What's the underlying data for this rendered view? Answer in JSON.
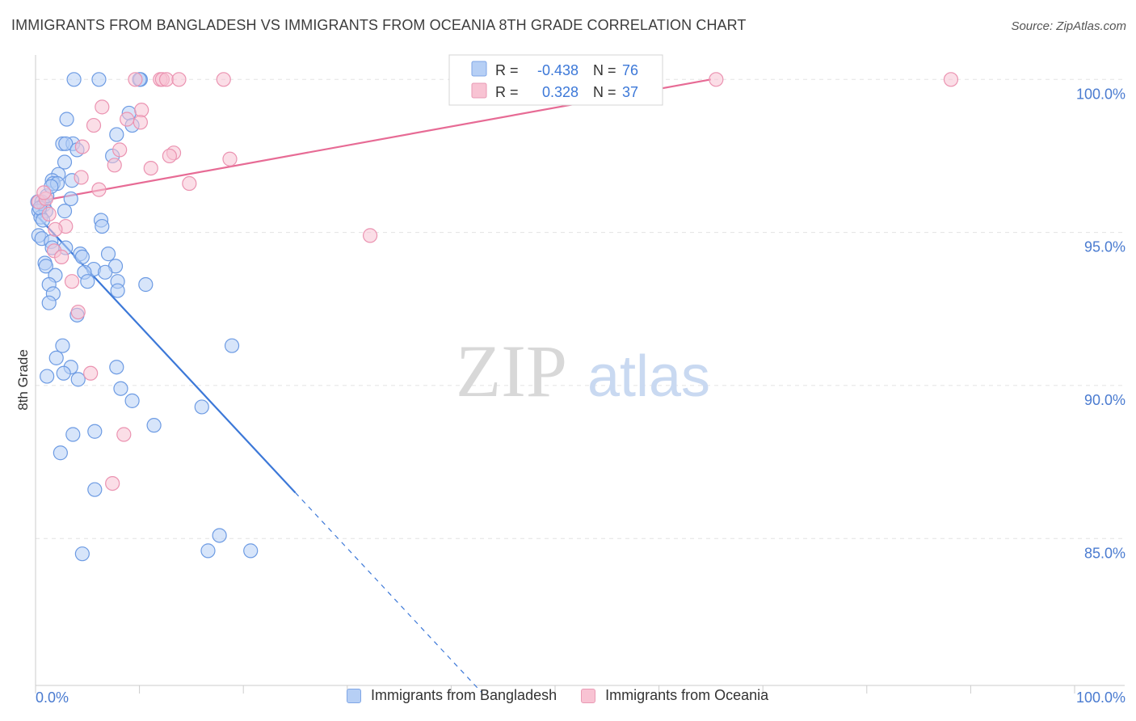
{
  "title": "IMMIGRANTS FROM BANGLADESH VS IMMIGRANTS FROM OCEANIA 8TH GRADE CORRELATION CHART",
  "source": "Source: ZipAtlas.com",
  "watermark": {
    "zip": "ZIP",
    "atlas": "atlas"
  },
  "colors": {
    "blue": "#3c78d8",
    "blue_fill": "#b6cff5",
    "pink": "#e76b95",
    "pink_fill": "#f8c3d3",
    "axis_text": "#4a7bd0",
    "grid": "#e3e3e3"
  },
  "stats": {
    "rows": [
      {
        "r_label": "R =",
        "r_value": "-0.438",
        "n_label": "N =",
        "n_value": "76"
      },
      {
        "r_label": "R =",
        "r_value": "0.328",
        "n_label": "N =",
        "n_value": "37"
      }
    ]
  },
  "legend": {
    "series_a": "Immigrants from Bangladesh",
    "series_b": "Immigrants from Oceania"
  },
  "chart_data": {
    "type": "scatter",
    "ylabel": "8th Grade",
    "xlabel": "",
    "xlim": [
      0,
      100
    ],
    "ylim": [
      80.2,
      100.8
    ],
    "x_tick_labels": [
      "0.0%",
      "100.0%"
    ],
    "y_ticks": [
      100,
      95,
      90,
      85
    ],
    "y_tick_labels": [
      "100.0%",
      "95.0%",
      "90.0%",
      "85.0%"
    ],
    "series": [
      {
        "name": "Immigrants from Bangladesh",
        "color": "#3c78d8",
        "trend": {
          "x0": 0.0,
          "y0": 95.6,
          "x1": 25.0,
          "y1": 86.5,
          "dash_to_x": 43.0
        },
        "points": [
          [
            3.7,
            100
          ],
          [
            6.1,
            100
          ],
          [
            10.1,
            100
          ],
          [
            3.0,
            98.7
          ],
          [
            9.0,
            98.9
          ],
          [
            9.3,
            98.5
          ],
          [
            7.8,
            98.2
          ],
          [
            2.6,
            97.9
          ],
          [
            3.6,
            97.9
          ],
          [
            2.9,
            97.9
          ],
          [
            4.0,
            97.7
          ],
          [
            7.4,
            97.5
          ],
          [
            2.8,
            97.3
          ],
          [
            2.2,
            96.9
          ],
          [
            1.6,
            96.7
          ],
          [
            1.7,
            96.6
          ],
          [
            3.5,
            96.7
          ],
          [
            0.2,
            96.0
          ],
          [
            0.6,
            96.0
          ],
          [
            3.4,
            96.1
          ],
          [
            0.8,
            95.9
          ],
          [
            0.3,
            95.7
          ],
          [
            1.0,
            95.7
          ],
          [
            2.8,
            95.7
          ],
          [
            6.3,
            95.4
          ],
          [
            0.5,
            95.5
          ],
          [
            6.4,
            95.2
          ],
          [
            0.3,
            94.9
          ],
          [
            0.6,
            94.8
          ],
          [
            1.5,
            94.7
          ],
          [
            2.9,
            94.5
          ],
          [
            1.6,
            94.5
          ],
          [
            4.3,
            94.3
          ],
          [
            7.0,
            94.3
          ],
          [
            4.5,
            94.2
          ],
          [
            0.9,
            94.0
          ],
          [
            1.0,
            93.9
          ],
          [
            7.7,
            93.9
          ],
          [
            5.6,
            93.8
          ],
          [
            6.7,
            93.7
          ],
          [
            4.7,
            93.7
          ],
          [
            1.9,
            93.6
          ],
          [
            1.3,
            93.3
          ],
          [
            5.0,
            93.4
          ],
          [
            7.9,
            93.4
          ],
          [
            10.6,
            93.3
          ],
          [
            7.9,
            93.1
          ],
          [
            1.7,
            93.0
          ],
          [
            1.3,
            92.7
          ],
          [
            4.0,
            92.3
          ],
          [
            18.9,
            91.3
          ],
          [
            2.6,
            91.3
          ],
          [
            2.0,
            90.9
          ],
          [
            3.4,
            90.6
          ],
          [
            7.8,
            90.6
          ],
          [
            1.1,
            90.3
          ],
          [
            2.7,
            90.4
          ],
          [
            4.1,
            90.2
          ],
          [
            8.2,
            89.9
          ],
          [
            9.3,
            89.5
          ],
          [
            16.0,
            89.3
          ],
          [
            11.4,
            88.7
          ],
          [
            5.7,
            88.5
          ],
          [
            3.6,
            88.4
          ],
          [
            2.4,
            87.8
          ],
          [
            5.7,
            86.6
          ],
          [
            17.7,
            85.1
          ],
          [
            16.6,
            84.6
          ],
          [
            20.7,
            84.6
          ],
          [
            4.5,
            84.5
          ],
          [
            10.0,
            100
          ],
          [
            0.4,
            95.8
          ],
          [
            1.1,
            96.2
          ],
          [
            2.1,
            96.6
          ],
          [
            1.5,
            96.5
          ],
          [
            0.7,
            95.4
          ]
        ]
      },
      {
        "name": "Immigrants from Oceania",
        "color": "#e76b95",
        "trend": {
          "x0": 0.0,
          "y0": 96.0,
          "x1": 65.0,
          "y1": 100.0
        },
        "points": [
          [
            9.6,
            100
          ],
          [
            12.0,
            100
          ],
          [
            12.2,
            100
          ],
          [
            12.6,
            100
          ],
          [
            13.8,
            100
          ],
          [
            18.1,
            100
          ],
          [
            65.5,
            100
          ],
          [
            88.1,
            100
          ],
          [
            6.4,
            99.1
          ],
          [
            10.2,
            99.0
          ],
          [
            8.8,
            98.7
          ],
          [
            5.6,
            98.5
          ],
          [
            10.1,
            98.6
          ],
          [
            4.5,
            97.8
          ],
          [
            8.1,
            97.7
          ],
          [
            13.3,
            97.6
          ],
          [
            12.9,
            97.5
          ],
          [
            18.7,
            97.4
          ],
          [
            7.6,
            97.2
          ],
          [
            11.1,
            97.1
          ],
          [
            4.4,
            96.8
          ],
          [
            14.8,
            96.6
          ],
          [
            6.1,
            96.4
          ],
          [
            0.3,
            96.0
          ],
          [
            1.0,
            96.1
          ],
          [
            1.3,
            95.6
          ],
          [
            2.9,
            95.2
          ],
          [
            1.9,
            95.1
          ],
          [
            32.2,
            94.9
          ],
          [
            1.8,
            94.4
          ],
          [
            2.5,
            94.2
          ],
          [
            3.5,
            93.4
          ],
          [
            4.1,
            92.4
          ],
          [
            5.3,
            90.4
          ],
          [
            8.5,
            88.4
          ],
          [
            7.4,
            86.8
          ],
          [
            0.8,
            96.3
          ]
        ]
      }
    ]
  }
}
